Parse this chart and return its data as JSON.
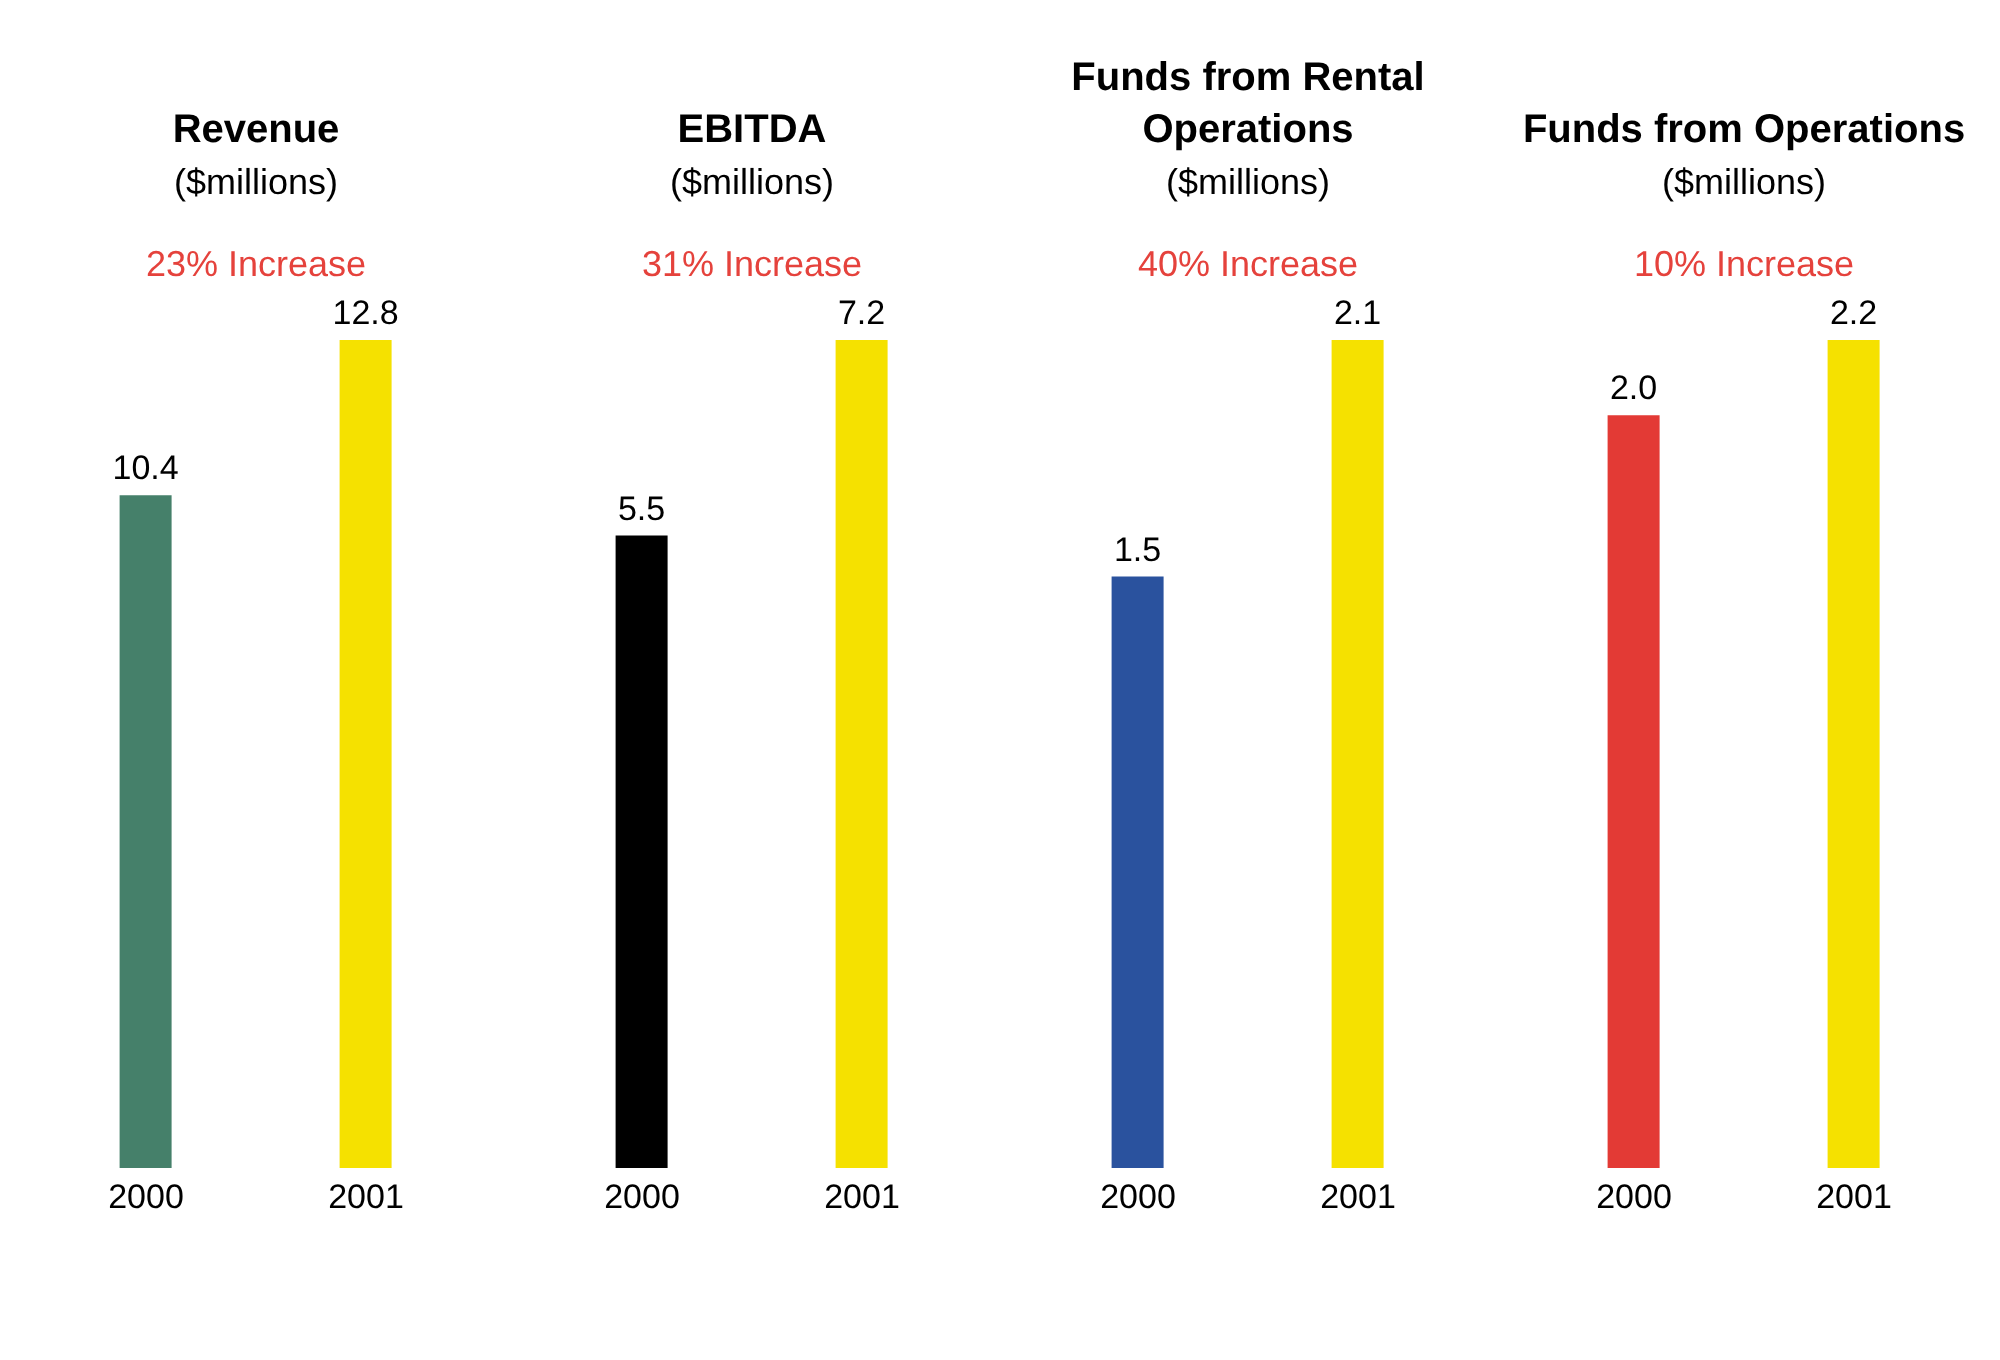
{
  "chart_data": [
    {
      "type": "bar",
      "title": "Revenue",
      "subtitle": "($millions)",
      "annotations": [
        "23% Increase"
      ],
      "categories": [
        "2000",
        "2001"
      ],
      "values": [
        10.4,
        12.8
      ],
      "value_labels": [
        "10.4",
        "12.8"
      ],
      "colors": [
        "#45806a",
        "#f5e100"
      ]
    },
    {
      "type": "bar",
      "title": "EBITDA",
      "subtitle": "($millions)",
      "annotations": [
        "31% Increase"
      ],
      "categories": [
        "2000",
        "2001"
      ],
      "values": [
        5.5,
        7.2
      ],
      "value_labels": [
        "5.5",
        "7.2"
      ],
      "colors": [
        "#000000",
        "#f5e100"
      ]
    },
    {
      "type": "bar",
      "title": "Funds from Rental Operations",
      "subtitle": "($millions)",
      "annotations": [
        "40% Increase"
      ],
      "categories": [
        "2000",
        "2001"
      ],
      "values": [
        1.5,
        2.1
      ],
      "value_labels": [
        "1.5",
        "2.1"
      ],
      "colors": [
        "#2a529e",
        "#f5e100"
      ]
    },
    {
      "type": "bar",
      "title": "Funds from Operations",
      "subtitle": "($millions)",
      "annotations": [
        "10% Increase"
      ],
      "categories": [
        "2000",
        "2001"
      ],
      "values": [
        2.0,
        2.2
      ],
      "value_labels": [
        "2.0",
        "2.2"
      ],
      "colors": [
        "#e33a35",
        "#f5e100"
      ]
    }
  ]
}
